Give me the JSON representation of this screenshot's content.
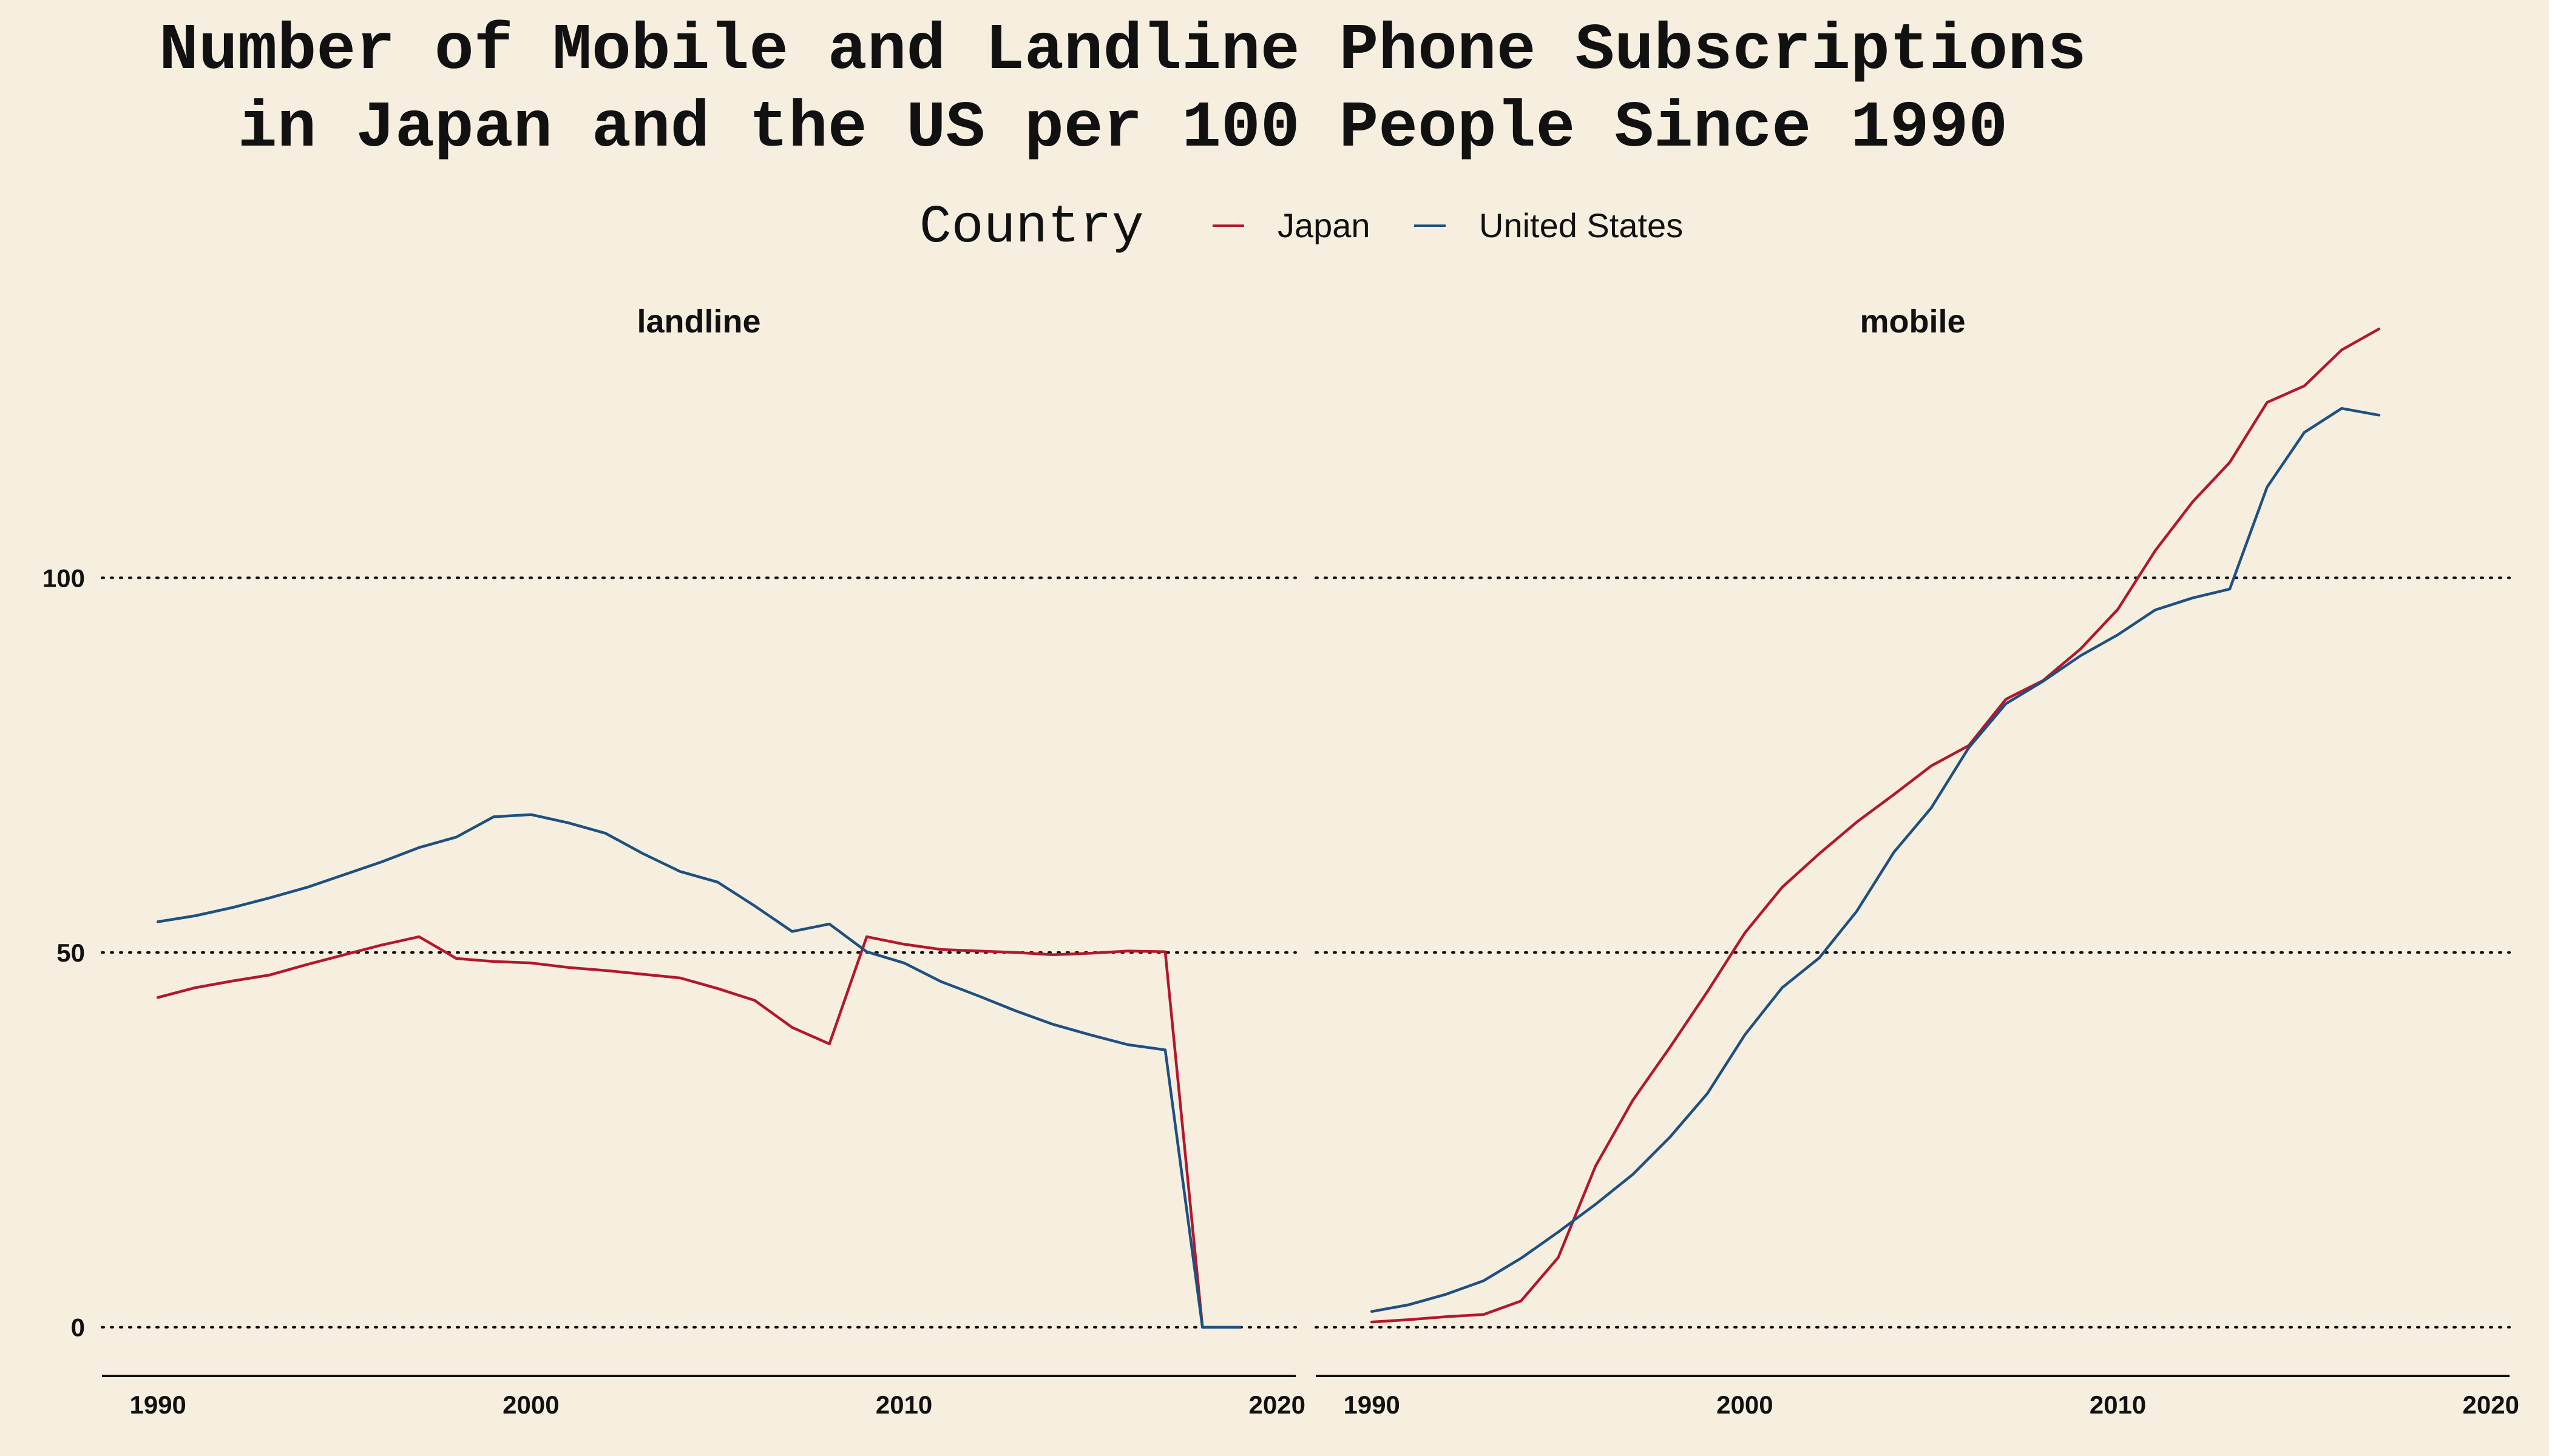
{
  "title": "Number of Mobile and Landline Phone Subscriptions\nin Japan and the US per 100 People Since 1990",
  "legend": {
    "title": "Country",
    "placement": "top-center"
  },
  "chart_data": {
    "type": "line",
    "title": "Number of Mobile and Landline Phone Subscriptions in Japan and the US per 100 People Since 1990",
    "xlabel": "",
    "ylabel": "",
    "xlim": [
      1988.5,
      2020.5
    ],
    "ylim": [
      -6.5,
      135
    ],
    "x_ticks": [
      1990,
      2000,
      2010,
      2020
    ],
    "y_ticks": [
      0,
      50,
      100
    ],
    "grid": "horizontal dotted",
    "colors": {
      "Japan": "#b2182b",
      "United States": "#1f5080"
    },
    "facets": [
      {
        "name": "landline",
        "series": [
          {
            "name": "Japan",
            "color": "#b2182b",
            "x": [
              1990,
              1991,
              1992,
              1993,
              1994,
              1995,
              1996,
              1997,
              1998,
              1999,
              2000,
              2001,
              2002,
              2003,
              2004,
              2005,
              2006,
              2007,
              2008,
              2009,
              2010,
              2011,
              2012,
              2013,
              2014,
              2015,
              2016,
              2017,
              2018,
              2019
            ],
            "values": [
              44,
              45.3,
              46.2,
              47,
              48.4,
              49.7,
              51,
              52.1,
              49.2,
              48.8,
              48.6,
              48,
              47.6,
              47.1,
              46.6,
              45.2,
              43.6,
              40,
              37.8,
              52.1,
              51.1,
              50.4,
              50.2,
              50,
              49.7,
              49.9,
              50.2,
              50.1,
              0,
              0
            ]
          },
          {
            "name": "United States",
            "color": "#1f5080",
            "x": [
              1990,
              1991,
              1992,
              1993,
              1994,
              1995,
              1996,
              1997,
              1998,
              1999,
              2000,
              2001,
              2002,
              2003,
              2004,
              2005,
              2006,
              2007,
              2008,
              2009,
              2010,
              2011,
              2012,
              2013,
              2014,
              2015,
              2016,
              2017,
              2018,
              2019
            ],
            "values": [
              54.1,
              54.9,
              56,
              57.3,
              58.7,
              60.4,
              62.1,
              64,
              65.4,
              68.1,
              68.4,
              67.3,
              65.9,
              63.2,
              60.8,
              59.4,
              56.2,
              52.8,
              53.8,
              50.1,
              48.6,
              46.1,
              44.2,
              42.2,
              40.4,
              39,
              37.7,
              37,
              0,
              0
            ]
          }
        ]
      },
      {
        "name": "mobile",
        "series": [
          {
            "name": "Japan",
            "color": "#b2182b",
            "x": [
              1990,
              1991,
              1992,
              1993,
              1994,
              1995,
              1996,
              1997,
              1998,
              1999,
              2000,
              2001,
              2002,
              2003,
              2004,
              2005,
              2006,
              2007,
              2008,
              2009,
              2010,
              2011,
              2012,
              2013,
              2014,
              2015,
              2016,
              2017
            ],
            "values": [
              0.7,
              1,
              1.4,
              1.7,
              3.5,
              9.3,
              21.5,
              30.3,
              37.4,
              44.8,
              52.6,
              58.7,
              63.2,
              67.4,
              71.1,
              74.9,
              77.6,
              83.8,
              86.3,
              90.5,
              95.8,
              103.6,
              110.1,
              115.4,
              123.4,
              125.6,
              130.4,
              133.2
            ]
          },
          {
            "name": "United States",
            "color": "#1f5080",
            "x": [
              1990,
              1991,
              1992,
              1993,
              1994,
              1995,
              1996,
              1997,
              1998,
              1999,
              2000,
              2001,
              2002,
              2003,
              2004,
              2005,
              2006,
              2007,
              2008,
              2009,
              2010,
              2011,
              2012,
              2013,
              2014,
              2015,
              2016,
              2017
            ],
            "values": [
              2.1,
              3,
              4.4,
              6.2,
              9.2,
              12.7,
              16.4,
              20.4,
              25.4,
              31.2,
              39,
              45.3,
              49.3,
              55.5,
              63.4,
              69.3,
              77.3,
              83.2,
              86.2,
              89.6,
              92.4,
              95.7,
              97.3,
              98.5,
              112.1,
              119.4,
              122.6,
              121.7
            ]
          }
        ]
      }
    ]
  }
}
